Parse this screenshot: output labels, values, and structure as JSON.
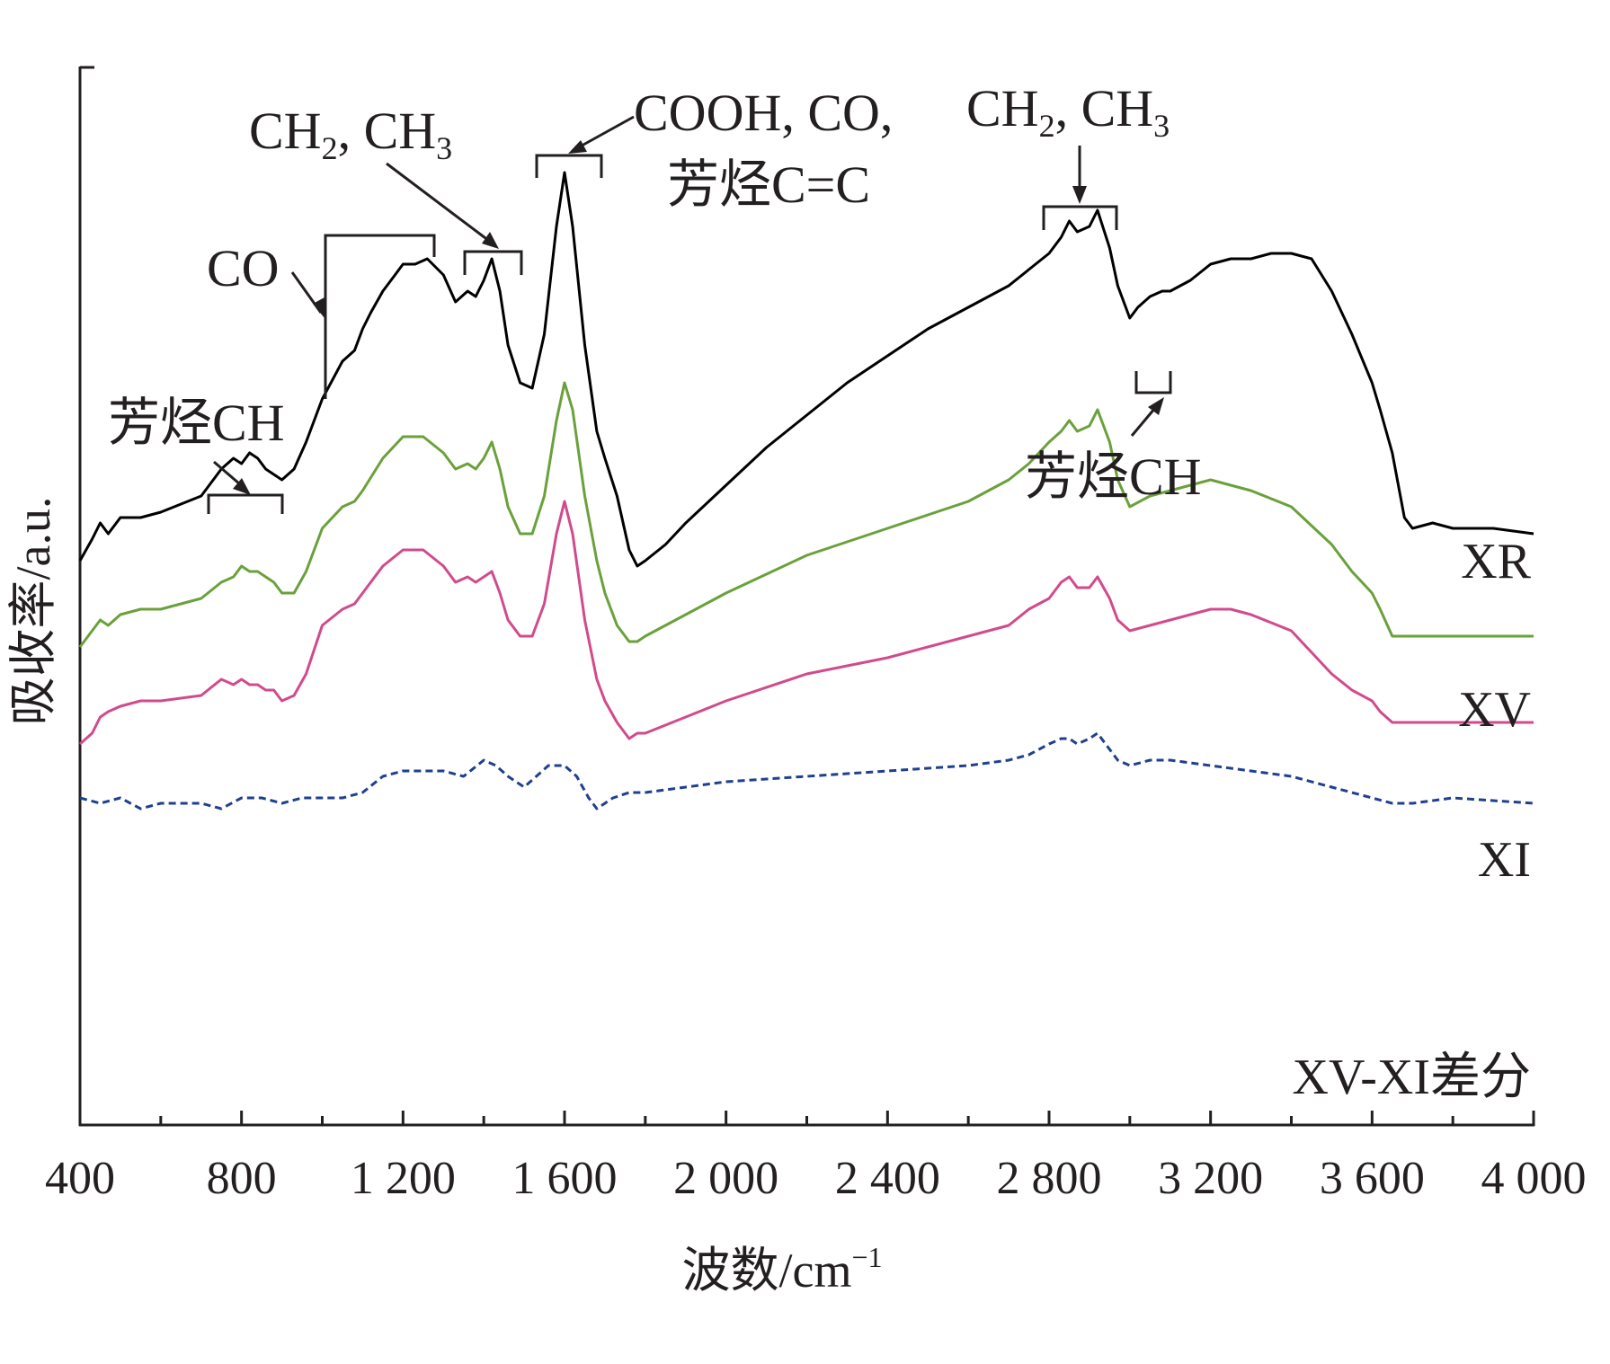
{
  "chart_data": {
    "type": "line",
    "title": "",
    "xlabel": "波数/cm",
    "xlabel_sup": "−1",
    "ylabel": "吸收率/a.u.",
    "xlim": [
      400,
      4000
    ],
    "x_ticks": [
      400,
      800,
      1200,
      1600,
      2000,
      2400,
      2800,
      3200,
      3600,
      4000
    ],
    "x_tick_labels": [
      "400",
      "800",
      "1 200",
      "1 600",
      "2 000",
      "2 400",
      "2 800",
      "3 200",
      "3 600",
      "4 000"
    ],
    "y_ticks": "none",
    "grid": false,
    "legend": "none (series labelled at right end)",
    "series": [
      {
        "name": "XR",
        "color": "#000000",
        "dash": "solid",
        "x": [
          400,
          430,
          450,
          470,
          500,
          550,
          600,
          700,
          750,
          780,
          800,
          820,
          840,
          860,
          880,
          900,
          930,
          960,
          1000,
          1050,
          1080,
          1100,
          1120,
          1150,
          1180,
          1200,
          1230,
          1260,
          1300,
          1330,
          1360,
          1380,
          1400,
          1420,
          1440,
          1460,
          1490,
          1520,
          1550,
          1580,
          1600,
          1620,
          1650,
          1680,
          1700,
          1730,
          1760,
          1780,
          1800,
          1850,
          1900,
          2000,
          2100,
          2200,
          2300,
          2400,
          2500,
          2600,
          2700,
          2750,
          2800,
          2830,
          2850,
          2870,
          2900,
          2920,
          2950,
          2970,
          3000,
          3020,
          3050,
          3080,
          3100,
          3150,
          3200,
          3250,
          3300,
          3350,
          3400,
          3450,
          3500,
          3550,
          3600,
          3620,
          3650,
          3680,
          3700,
          3750,
          3800,
          3900,
          4000
        ],
        "y": [
          0.28,
          0.32,
          0.35,
          0.33,
          0.36,
          0.36,
          0.37,
          0.4,
          0.45,
          0.47,
          0.46,
          0.48,
          0.47,
          0.45,
          0.44,
          0.43,
          0.45,
          0.5,
          0.58,
          0.65,
          0.67,
          0.71,
          0.74,
          0.78,
          0.81,
          0.83,
          0.83,
          0.84,
          0.81,
          0.76,
          0.78,
          0.77,
          0.8,
          0.84,
          0.78,
          0.68,
          0.61,
          0.6,
          0.7,
          0.9,
          1.0,
          0.9,
          0.68,
          0.52,
          0.47,
          0.4,
          0.3,
          0.27,
          0.28,
          0.31,
          0.35,
          0.42,
          0.49,
          0.55,
          0.61,
          0.66,
          0.71,
          0.75,
          0.79,
          0.82,
          0.85,
          0.88,
          0.91,
          0.89,
          0.9,
          0.93,
          0.86,
          0.79,
          0.73,
          0.75,
          0.77,
          0.78,
          0.78,
          0.8,
          0.83,
          0.84,
          0.84,
          0.85,
          0.85,
          0.84,
          0.78,
          0.7,
          0.61,
          0.56,
          0.48,
          0.36,
          0.34,
          0.35,
          0.34,
          0.34,
          0.33
        ]
      },
      {
        "name": "XV",
        "color": "#6aa13b",
        "dash": "solid",
        "x": [
          400,
          430,
          450,
          470,
          500,
          550,
          600,
          700,
          750,
          780,
          800,
          820,
          840,
          860,
          880,
          900,
          930,
          960,
          1000,
          1050,
          1080,
          1100,
          1150,
          1200,
          1250,
          1300,
          1330,
          1360,
          1380,
          1400,
          1420,
          1440,
          1460,
          1490,
          1520,
          1550,
          1580,
          1600,
          1620,
          1650,
          1680,
          1700,
          1730,
          1760,
          1780,
          1800,
          1900,
          2000,
          2200,
          2400,
          2600,
          2700,
          2750,
          2800,
          2830,
          2850,
          2870,
          2900,
          2920,
          2950,
          2970,
          3000,
          3050,
          3100,
          3150,
          3200,
          3250,
          3300,
          3400,
          3500,
          3550,
          3600,
          3620,
          3650,
          3680,
          3700,
          3800,
          4000
        ],
        "y": [
          0.12,
          0.15,
          0.17,
          0.16,
          0.18,
          0.19,
          0.19,
          0.21,
          0.24,
          0.25,
          0.27,
          0.26,
          0.26,
          0.25,
          0.24,
          0.22,
          0.22,
          0.26,
          0.34,
          0.38,
          0.39,
          0.41,
          0.47,
          0.51,
          0.51,
          0.48,
          0.45,
          0.46,
          0.45,
          0.47,
          0.5,
          0.45,
          0.38,
          0.33,
          0.33,
          0.4,
          0.54,
          0.61,
          0.56,
          0.4,
          0.28,
          0.22,
          0.16,
          0.13,
          0.13,
          0.14,
          0.18,
          0.22,
          0.29,
          0.34,
          0.39,
          0.43,
          0.46,
          0.5,
          0.52,
          0.54,
          0.52,
          0.53,
          0.56,
          0.5,
          0.43,
          0.38,
          0.4,
          0.41,
          0.42,
          0.43,
          0.42,
          0.41,
          0.38,
          0.31,
          0.26,
          0.22,
          0.19,
          0.14,
          0.14,
          0.14,
          0.14,
          0.14
        ]
      },
      {
        "name": "XI",
        "color": "#d14b8c",
        "dash": "solid",
        "x": [
          400,
          430,
          450,
          470,
          500,
          550,
          600,
          700,
          750,
          780,
          800,
          820,
          840,
          860,
          880,
          900,
          930,
          960,
          1000,
          1050,
          1080,
          1100,
          1150,
          1200,
          1250,
          1300,
          1330,
          1360,
          1380,
          1400,
          1420,
          1440,
          1460,
          1490,
          1520,
          1550,
          1580,
          1600,
          1620,
          1650,
          1680,
          1700,
          1730,
          1760,
          1780,
          1800,
          1900,
          2000,
          2200,
          2400,
          2600,
          2700,
          2750,
          2800,
          2830,
          2850,
          2870,
          2900,
          2920,
          2950,
          2970,
          3000,
          3050,
          3100,
          3150,
          3200,
          3250,
          3300,
          3400,
          3500,
          3550,
          3600,
          3620,
          3650,
          3680,
          3700,
          3800,
          4000
        ],
        "y": [
          -0.06,
          -0.04,
          -0.01,
          0.0,
          0.01,
          0.02,
          0.02,
          0.03,
          0.06,
          0.05,
          0.06,
          0.05,
          0.05,
          0.04,
          0.04,
          0.02,
          0.03,
          0.07,
          0.16,
          0.19,
          0.2,
          0.22,
          0.27,
          0.3,
          0.3,
          0.27,
          0.24,
          0.25,
          0.24,
          0.25,
          0.26,
          0.22,
          0.17,
          0.14,
          0.14,
          0.2,
          0.33,
          0.39,
          0.33,
          0.17,
          0.06,
          0.02,
          -0.02,
          -0.05,
          -0.04,
          -0.04,
          -0.01,
          0.02,
          0.07,
          0.1,
          0.14,
          0.16,
          0.19,
          0.21,
          0.24,
          0.25,
          0.23,
          0.23,
          0.25,
          0.21,
          0.17,
          0.15,
          0.16,
          0.17,
          0.18,
          0.19,
          0.19,
          0.18,
          0.15,
          0.07,
          0.04,
          0.02,
          0.0,
          -0.02,
          -0.02,
          -0.02,
          -0.02,
          -0.02
        ]
      },
      {
        "name": "XV-XI差分",
        "color": "#1f3f8f",
        "dash": "dashed",
        "x": [
          400,
          450,
          500,
          550,
          600,
          650,
          700,
          750,
          800,
          850,
          900,
          950,
          1000,
          1050,
          1100,
          1150,
          1200,
          1250,
          1300,
          1350,
          1400,
          1430,
          1460,
          1500,
          1530,
          1560,
          1600,
          1630,
          1660,
          1680,
          1700,
          1720,
          1760,
          1800,
          1900,
          2000,
          2200,
          2400,
          2600,
          2700,
          2750,
          2800,
          2830,
          2850,
          2870,
          2900,
          2920,
          2950,
          2970,
          3000,
          3050,
          3100,
          3200,
          3300,
          3400,
          3500,
          3550,
          3600,
          3650,
          3700,
          3800,
          4000
        ],
        "y": [
          -0.16,
          -0.17,
          -0.16,
          -0.18,
          -0.17,
          -0.17,
          -0.17,
          -0.18,
          -0.16,
          -0.16,
          -0.17,
          -0.16,
          -0.16,
          -0.16,
          -0.15,
          -0.12,
          -0.11,
          -0.11,
          -0.11,
          -0.12,
          -0.09,
          -0.1,
          -0.12,
          -0.14,
          -0.12,
          -0.1,
          -0.1,
          -0.12,
          -0.16,
          -0.18,
          -0.17,
          -0.16,
          -0.15,
          -0.15,
          -0.14,
          -0.13,
          -0.12,
          -0.11,
          -0.1,
          -0.09,
          -0.08,
          -0.06,
          -0.05,
          -0.05,
          -0.06,
          -0.05,
          -0.04,
          -0.07,
          -0.09,
          -0.1,
          -0.09,
          -0.09,
          -0.1,
          -0.11,
          -0.12,
          -0.14,
          -0.15,
          -0.16,
          -0.17,
          -0.17,
          -0.16,
          -0.17
        ]
      }
    ],
    "annotations": [
      {
        "text": "芳烃CH"
      },
      {
        "text": "CO"
      },
      {
        "text": "CH",
        "sub1": "2",
        "mid": ", CH",
        "sub2": "3"
      },
      {
        "text": "COOH, CO,",
        "line2": "芳烃C=C"
      },
      {
        "text": "CH",
        "sub1": "2",
        "mid": ", CH",
        "sub2": "3"
      },
      {
        "text": "芳烃CH"
      }
    ]
  }
}
